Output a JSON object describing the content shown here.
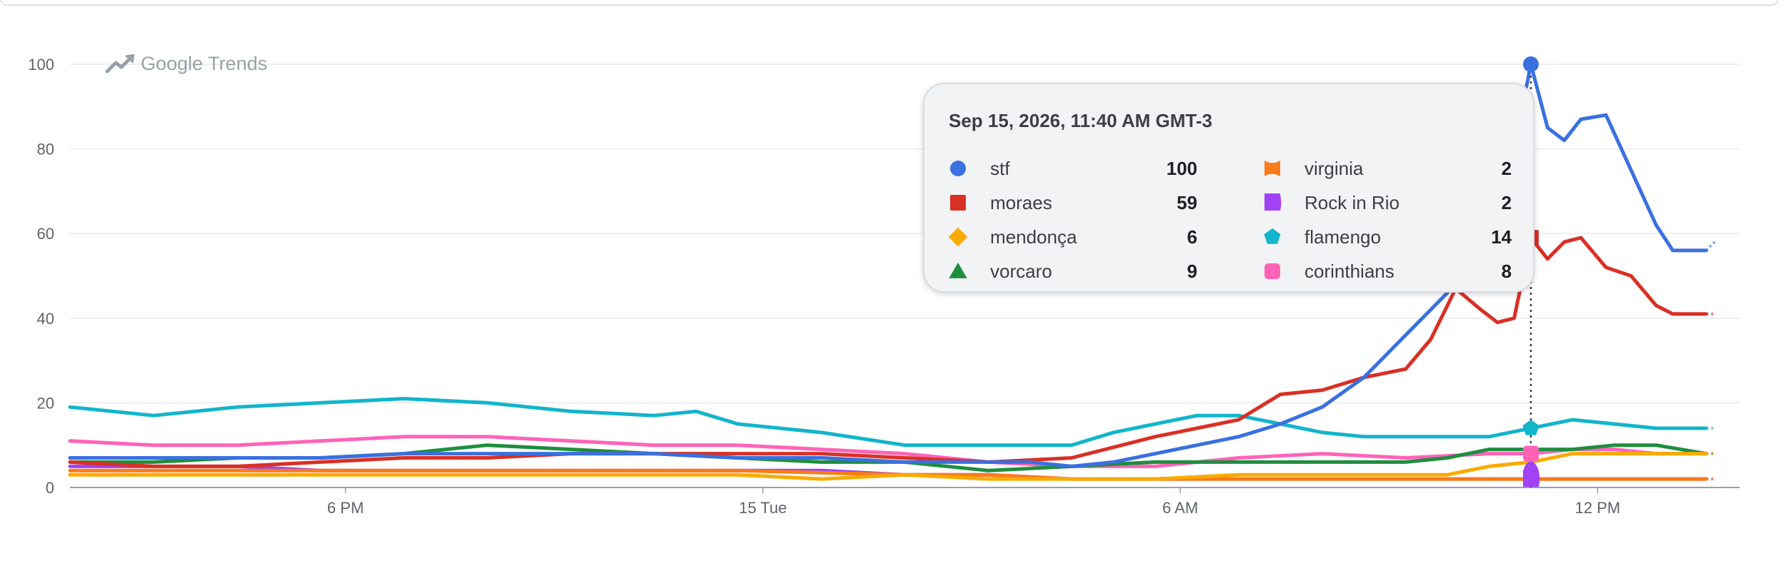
{
  "watermark": "Google Trends",
  "tooltip": {
    "title": "Sep 15, 2026, 11:40 AM GMT-3",
    "entries": [
      {
        "name": "stf",
        "value": "100",
        "color": "#3a70e0",
        "shape": "circle"
      },
      {
        "name": "moraes",
        "value": "59",
        "color": "#d93025",
        "shape": "square"
      },
      {
        "name": "mendonça",
        "value": "6",
        "color": "#f9ab00",
        "shape": "diamond"
      },
      {
        "name": "vorcaro",
        "value": "9",
        "color": "#1e8e3e",
        "shape": "triangle"
      },
      {
        "name": "virginia",
        "value": "2",
        "color": "#fa7b17",
        "shape": "bowtie"
      },
      {
        "name": "Rock in Rio",
        "value": "2",
        "color": "#a142f4",
        "shape": "half-circle"
      },
      {
        "name": "flamengo",
        "value": "14",
        "color": "#12b5cb",
        "shape": "pentagon"
      },
      {
        "name": "corinthians",
        "value": "8",
        "color": "#ff63b8",
        "shape": "flower"
      }
    ]
  },
  "chart_data": {
    "type": "line",
    "y_ticks": [
      "0",
      "20",
      "40",
      "60",
      "80",
      "100"
    ],
    "ylim": [
      0,
      100
    ],
    "x_range": [
      -4.0,
      16.0
    ],
    "x_ticks": [
      {
        "label": "6 PM",
        "x": -0.7
      },
      {
        "label": "15 Tue",
        "x": 4.3
      },
      {
        "label": "6 AM",
        "x": 9.3
      },
      {
        "label": "12 PM",
        "x": 14.3
      }
    ],
    "hover_x": 13.5,
    "grid": true,
    "series": [
      {
        "name": "stf",
        "color": "#3a70e0",
        "values": [
          [
            -4,
            7
          ],
          [
            -3,
            7
          ],
          [
            -2,
            7
          ],
          [
            -1,
            7
          ],
          [
            0,
            8
          ],
          [
            1,
            8
          ],
          [
            2,
            8
          ],
          [
            3,
            8
          ],
          [
            4,
            7
          ],
          [
            5,
            7
          ],
          [
            6,
            6
          ],
          [
            7,
            6
          ],
          [
            7.5,
            6
          ],
          [
            8,
            5
          ],
          [
            8.5,
            6
          ],
          [
            9,
            8
          ],
          [
            9.5,
            10
          ],
          [
            10,
            12
          ],
          [
            10.5,
            15
          ],
          [
            11,
            19
          ],
          [
            11.5,
            26
          ],
          [
            12,
            36
          ],
          [
            12.3,
            42
          ],
          [
            12.6,
            48
          ],
          [
            12.9,
            52
          ],
          [
            13.1,
            55
          ],
          [
            13.3,
            80
          ],
          [
            13.5,
            100
          ],
          [
            13.7,
            85
          ],
          [
            13.9,
            82
          ],
          [
            14.1,
            87
          ],
          [
            14.4,
            88
          ],
          [
            14.7,
            75
          ],
          [
            15,
            62
          ],
          [
            15.2,
            56
          ],
          [
            15.4,
            56
          ],
          [
            15.6,
            56
          ]
        ]
      },
      {
        "name": "moraes",
        "color": "#d93025",
        "values": [
          [
            -4,
            6
          ],
          [
            -3,
            5
          ],
          [
            -2,
            5
          ],
          [
            -1,
            6
          ],
          [
            0,
            7
          ],
          [
            1,
            7
          ],
          [
            2,
            8
          ],
          [
            3,
            8
          ],
          [
            4,
            8
          ],
          [
            5,
            8
          ],
          [
            6,
            7
          ],
          [
            7,
            6
          ],
          [
            8,
            7
          ],
          [
            9,
            12
          ],
          [
            9.5,
            14
          ],
          [
            10,
            16
          ],
          [
            10.5,
            22
          ],
          [
            11,
            23
          ],
          [
            11.5,
            26
          ],
          [
            12,
            28
          ],
          [
            12.3,
            35
          ],
          [
            12.6,
            47
          ],
          [
            12.9,
            42
          ],
          [
            13.1,
            39
          ],
          [
            13.3,
            40
          ],
          [
            13.5,
            59
          ],
          [
            13.7,
            54
          ],
          [
            13.9,
            58
          ],
          [
            14.1,
            59
          ],
          [
            14.4,
            52
          ],
          [
            14.7,
            50
          ],
          [
            15,
            43
          ],
          [
            15.2,
            41
          ],
          [
            15.4,
            41
          ],
          [
            15.6,
            41
          ]
        ]
      },
      {
        "name": "mendonça",
        "color": "#f9ab00",
        "values": [
          [
            -4,
            3
          ],
          [
            -3,
            3
          ],
          [
            -2,
            3
          ],
          [
            -1,
            3
          ],
          [
            0,
            3
          ],
          [
            1,
            3
          ],
          [
            2,
            3
          ],
          [
            3,
            3
          ],
          [
            4,
            3
          ],
          [
            5,
            2
          ],
          [
            6,
            3
          ],
          [
            7,
            2
          ],
          [
            8,
            2
          ],
          [
            9,
            2
          ],
          [
            10,
            3
          ],
          [
            11,
            3
          ],
          [
            12,
            3
          ],
          [
            12.5,
            3
          ],
          [
            13,
            5
          ],
          [
            13.5,
            6
          ],
          [
            14,
            8
          ],
          [
            14.5,
            8
          ],
          [
            15,
            8
          ],
          [
            15.6,
            8
          ]
        ]
      },
      {
        "name": "vorcaro",
        "color": "#1e8e3e",
        "values": [
          [
            -4,
            6
          ],
          [
            -3,
            6
          ],
          [
            -2,
            7
          ],
          [
            -1,
            7
          ],
          [
            0,
            8
          ],
          [
            1,
            10
          ],
          [
            2,
            9
          ],
          [
            3,
            8
          ],
          [
            4,
            7
          ],
          [
            5,
            6
          ],
          [
            6,
            6
          ],
          [
            7,
            4
          ],
          [
            8,
            5
          ],
          [
            9,
            6
          ],
          [
            10,
            6
          ],
          [
            11,
            6
          ],
          [
            12,
            6
          ],
          [
            12.5,
            7
          ],
          [
            13,
            9
          ],
          [
            13.5,
            9
          ],
          [
            14,
            9
          ],
          [
            14.5,
            10
          ],
          [
            15,
            10
          ],
          [
            15.6,
            8
          ]
        ]
      },
      {
        "name": "virginia",
        "color": "#fa7b17",
        "values": [
          [
            -4,
            4
          ],
          [
            -2,
            4
          ],
          [
            0,
            4
          ],
          [
            2,
            4
          ],
          [
            4,
            4
          ],
          [
            6,
            3
          ],
          [
            7,
            3
          ],
          [
            8,
            2
          ],
          [
            10,
            2
          ],
          [
            12,
            2
          ],
          [
            13.5,
            2
          ],
          [
            15.6,
            2
          ]
        ]
      },
      {
        "name": "Rock in Rio",
        "color": "#a142f4",
        "values": [
          [
            -4,
            5
          ],
          [
            -3,
            5
          ],
          [
            -2,
            5
          ],
          [
            -1,
            4
          ],
          [
            0,
            4
          ],
          [
            1,
            4
          ],
          [
            2,
            4
          ],
          [
            3,
            4
          ],
          [
            4,
            4
          ],
          [
            5,
            4
          ],
          [
            6,
            3
          ],
          [
            7,
            3
          ],
          [
            8,
            2
          ],
          [
            9,
            2
          ],
          [
            10,
            2
          ],
          [
            11,
            2
          ],
          [
            12,
            2
          ],
          [
            13,
            2
          ],
          [
            13.5,
            2
          ],
          [
            14,
            2
          ],
          [
            15.6,
            2
          ]
        ]
      },
      {
        "name": "flamengo",
        "color": "#12b5cb",
        "values": [
          [
            -4,
            19
          ],
          [
            -3,
            17
          ],
          [
            -2,
            19
          ],
          [
            -1,
            20
          ],
          [
            0,
            21
          ],
          [
            1,
            20
          ],
          [
            2,
            18
          ],
          [
            3,
            17
          ],
          [
            3.5,
            18
          ],
          [
            4,
            15
          ],
          [
            5,
            13
          ],
          [
            6,
            10
          ],
          [
            7,
            10
          ],
          [
            8,
            10
          ],
          [
            8.5,
            13
          ],
          [
            9,
            15
          ],
          [
            9.5,
            17
          ],
          [
            10,
            17
          ],
          [
            10.5,
            15
          ],
          [
            11,
            13
          ],
          [
            11.5,
            12
          ],
          [
            12,
            12
          ],
          [
            12.5,
            12
          ],
          [
            13,
            12
          ],
          [
            13.5,
            14
          ],
          [
            14,
            16
          ],
          [
            14.5,
            15
          ],
          [
            15,
            14
          ],
          [
            15.6,
            14
          ]
        ]
      },
      {
        "name": "corinthians",
        "color": "#ff63b8",
        "values": [
          [
            -4,
            11
          ],
          [
            -3,
            10
          ],
          [
            -2,
            10
          ],
          [
            -1,
            11
          ],
          [
            0,
            12
          ],
          [
            1,
            12
          ],
          [
            2,
            11
          ],
          [
            3,
            10
          ],
          [
            4,
            10
          ],
          [
            5,
            9
          ],
          [
            6,
            8
          ],
          [
            7,
            6
          ],
          [
            8,
            5
          ],
          [
            9,
            5
          ],
          [
            10,
            7
          ],
          [
            11,
            8
          ],
          [
            12,
            7
          ],
          [
            13,
            8
          ],
          [
            13.5,
            8
          ],
          [
            14,
            9
          ],
          [
            14.5,
            9
          ],
          [
            15,
            8
          ],
          [
            15.6,
            8
          ]
        ]
      }
    ]
  }
}
